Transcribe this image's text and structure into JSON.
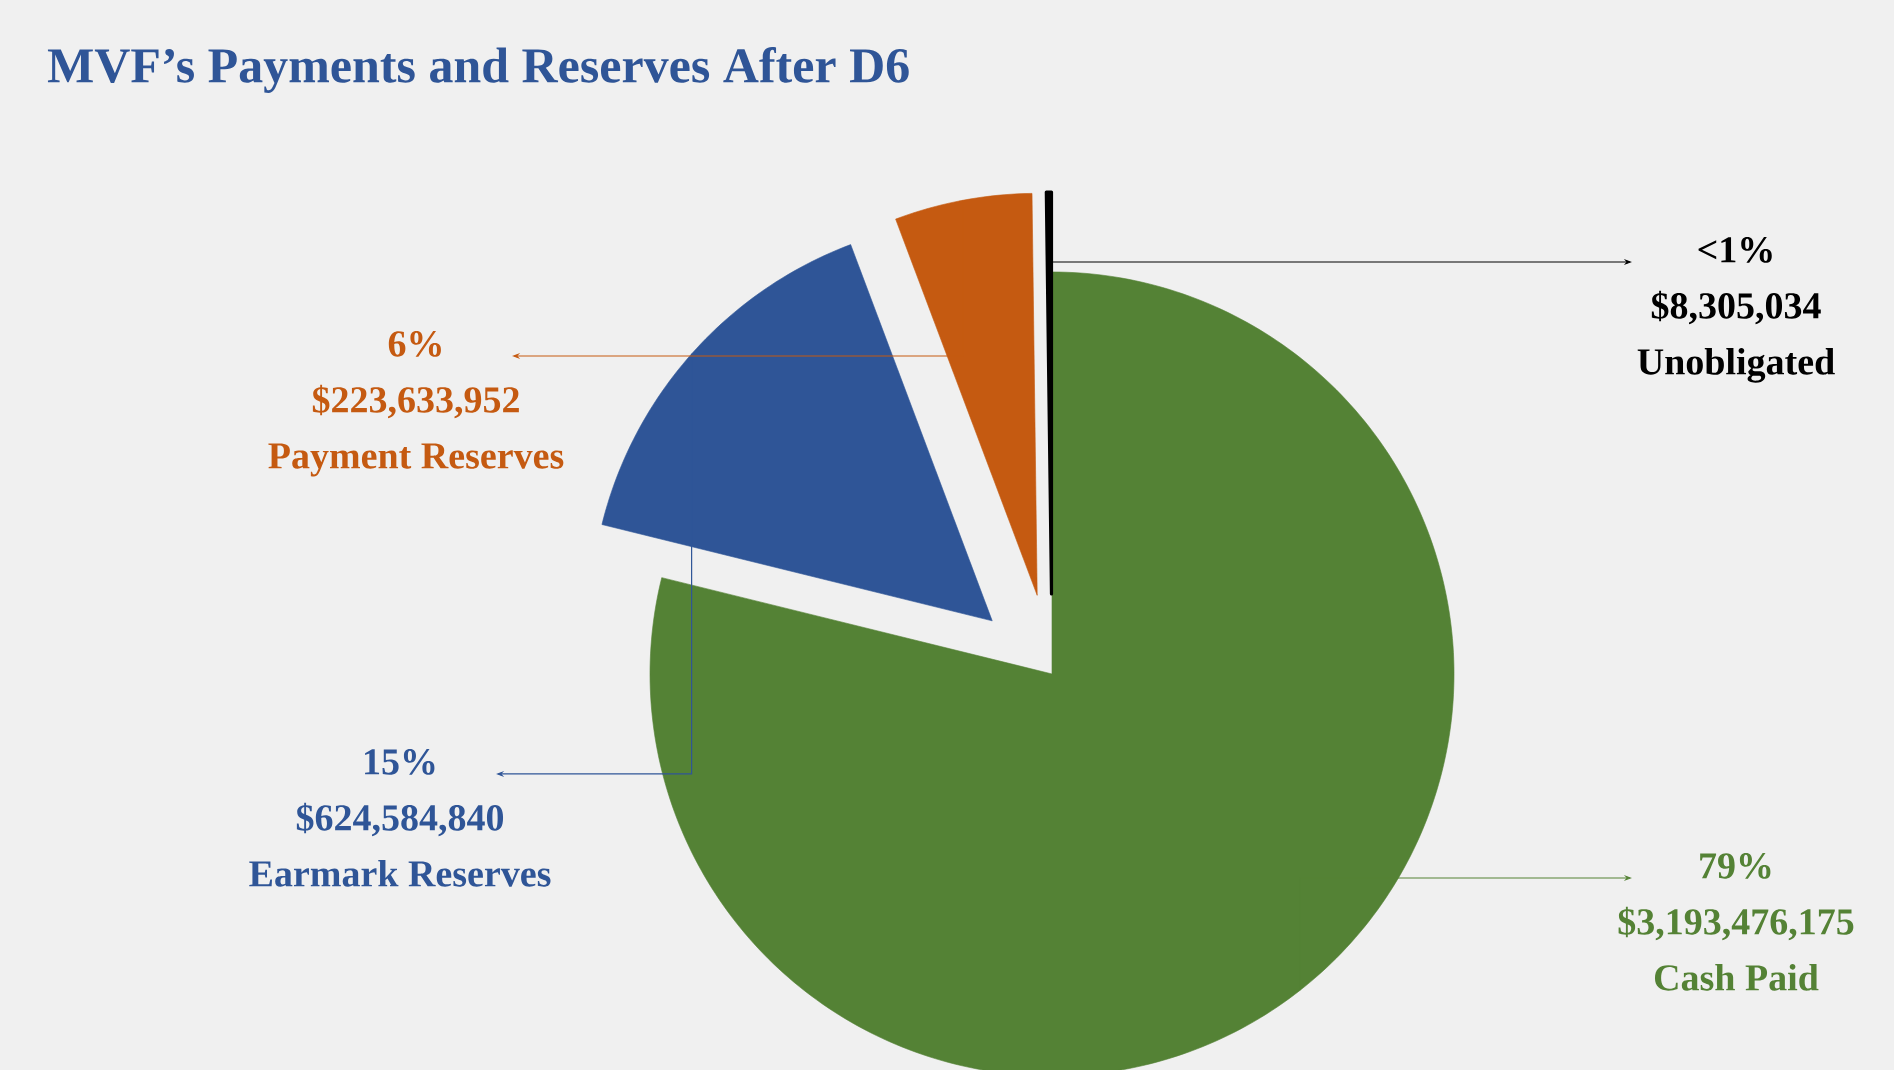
{
  "chart_data": {
    "type": "pie",
    "title": "MVF’s Payments and Reserves After D6",
    "categories": [
      "Cash Paid",
      "Earmark Reserves",
      "Payment Reserves",
      "Unobligated"
    ],
    "values": [
      3193476175,
      624584840,
      223633952,
      8305034
    ],
    "colors": [
      "#548235",
      "#2f5597",
      "#c55a11",
      "#000000"
    ],
    "value_labels": [
      "$3,193,476,175",
      "$624,584,840",
      "$223,633,952",
      "$8,305,034"
    ],
    "annotations": [
      {
        "text": "79%",
        "x": "Cash Paid"
      },
      {
        "text": "15%",
        "x": "Earmark Reserves"
      },
      {
        "text": "6%",
        "x": "Payment Reserves"
      },
      {
        "text": "<1%",
        "x": "Unobligated"
      }
    ]
  }
}
